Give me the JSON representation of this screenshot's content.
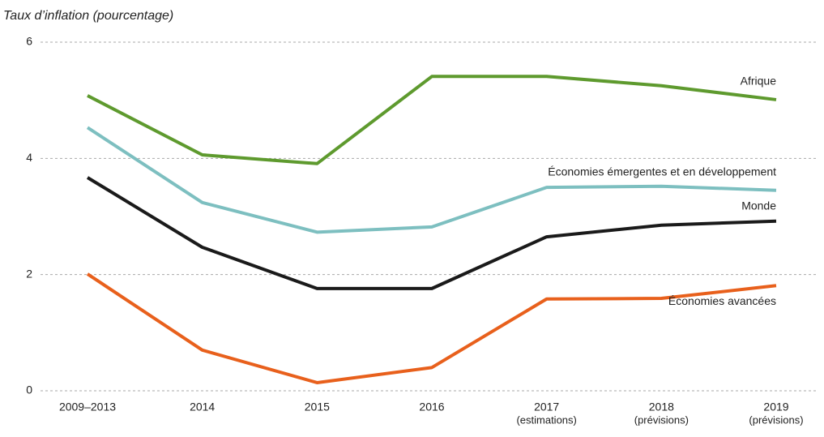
{
  "chart_data": {
    "type": "line",
    "y_axis_title": "Taux d’inflation (pourcentage)",
    "categories": [
      "2009–2013",
      "2014",
      "2015",
      "2016",
      "2017",
      "2018",
      "2019"
    ],
    "category_notes": [
      null,
      null,
      null,
      null,
      "(estimations)",
      "(prévisions)",
      "(prévisions)"
    ],
    "series": [
      {
        "name": "Afrique",
        "color": "#5e9a2e",
        "values": [
          5.08,
          4.06,
          3.91,
          5.41,
          5.41,
          5.25,
          5.01
        ]
      },
      {
        "name": "Économies émergentes et en développement",
        "color": "#7dbfc0",
        "values": [
          4.53,
          3.24,
          2.73,
          2.82,
          3.5,
          3.52,
          3.45
        ]
      },
      {
        "name": "Monde",
        "color": "#1a1a1a",
        "values": [
          3.67,
          2.47,
          1.76,
          1.76,
          2.65,
          2.85,
          2.92
        ]
      },
      {
        "name": "Économies avancées",
        "color": "#e8601c",
        "values": [
          2.01,
          0.7,
          0.14,
          0.4,
          1.58,
          1.59,
          1.81
        ]
      }
    ],
    "ylim": [
      0,
      6
    ],
    "yticks": [
      0,
      2,
      4,
      6
    ],
    "grid": true
  }
}
